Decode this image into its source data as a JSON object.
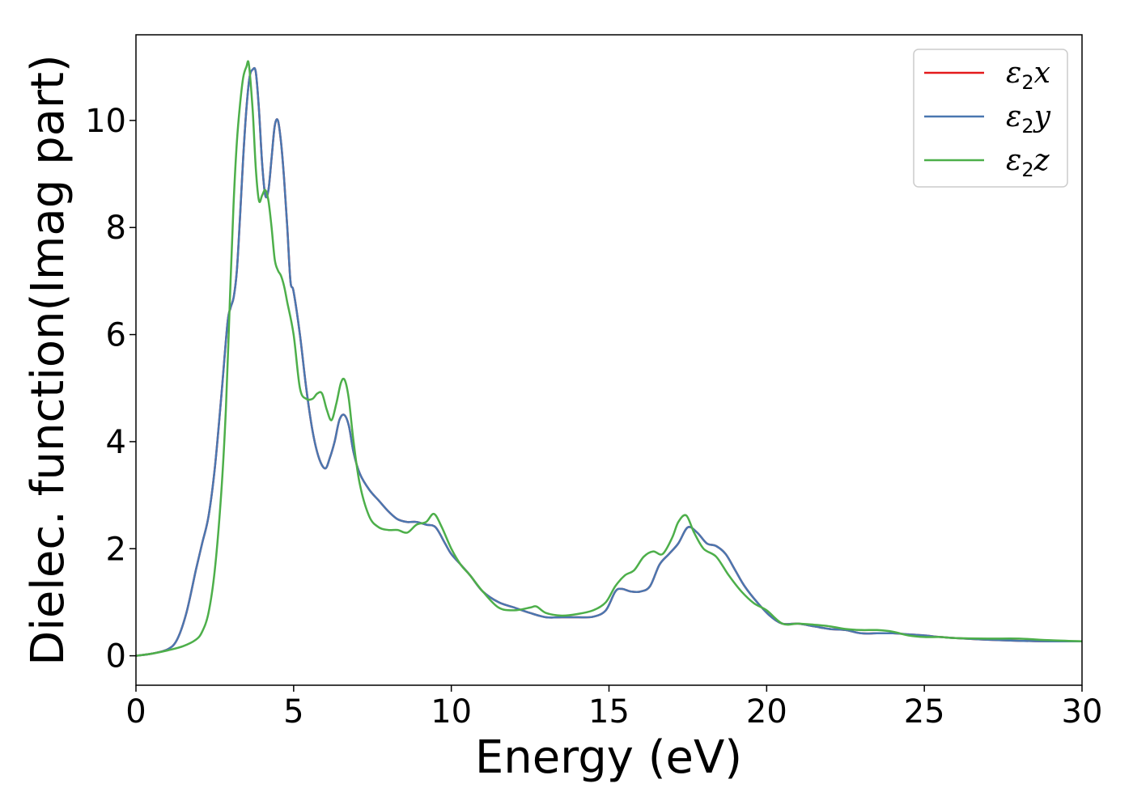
{
  "chart_data": {
    "type": "line",
    "title": "",
    "xlabel": "Energy (eV)",
    "ylabel": "Dielec. function(Imag part)",
    "xlim": [
      0,
      30
    ],
    "ylim": [
      -0.55,
      11.6
    ],
    "xticks": [
      0,
      5,
      10,
      15,
      20,
      25,
      30
    ],
    "xtick_labels": [
      "0",
      "5",
      "10",
      "15",
      "20",
      "25",
      "30"
    ],
    "yticks": [
      0,
      2,
      4,
      6,
      8,
      10
    ],
    "ytick_labels": [
      "0",
      "2",
      "4",
      "6",
      "8",
      "10"
    ],
    "grid": false,
    "legend_position": "top-right",
    "series": [
      {
        "name": "ε2x",
        "legend_base": "ε",
        "legend_sub": "2",
        "legend_var": "x",
        "color": "#e41a1c",
        "x": [
          0,
          0.5,
          1.0,
          1.3,
          1.6,
          1.9,
          2.1,
          2.3,
          2.5,
          2.7,
          2.9,
          3.0,
          3.1,
          3.2,
          3.3,
          3.4,
          3.5,
          3.6,
          3.7,
          3.8,
          3.9,
          4.0,
          4.1,
          4.2,
          4.3,
          4.4,
          4.5,
          4.6,
          4.7,
          4.8,
          4.9,
          5.0,
          5.2,
          5.4,
          5.6,
          5.8,
          6.0,
          6.15,
          6.3,
          6.45,
          6.6,
          6.75,
          6.9,
          7.1,
          7.4,
          7.7,
          8.0,
          8.3,
          8.6,
          8.9,
          9.2,
          9.5,
          9.8,
          10.0,
          10.3,
          10.6,
          11.0,
          11.5,
          12.0,
          12.5,
          13.0,
          13.5,
          14.0,
          14.5,
          14.9,
          15.2,
          15.4,
          15.7,
          16.0,
          16.3,
          16.6,
          16.9,
          17.2,
          17.5,
          17.8,
          18.1,
          18.4,
          18.7,
          19.0,
          19.3,
          19.7,
          20.1,
          20.5,
          21.0,
          21.5,
          22.0,
          22.5,
          23.0,
          23.5,
          24.0,
          24.5,
          25.0,
          25.5,
          26.0,
          27.0,
          28.0,
          29.0,
          30.0
        ],
        "y": [
          0.0,
          0.04,
          0.12,
          0.3,
          0.8,
          1.6,
          2.1,
          2.6,
          3.5,
          4.8,
          6.2,
          6.5,
          6.7,
          7.2,
          8.2,
          9.3,
          10.2,
          10.8,
          10.95,
          10.9,
          10.2,
          9.2,
          8.6,
          8.7,
          9.3,
          9.9,
          10.0,
          9.6,
          8.9,
          8.0,
          7.0,
          6.8,
          6.0,
          5.0,
          4.2,
          3.7,
          3.5,
          3.7,
          4.0,
          4.4,
          4.5,
          4.3,
          3.8,
          3.4,
          3.1,
          2.9,
          2.7,
          2.55,
          2.5,
          2.5,
          2.45,
          2.4,
          2.1,
          1.9,
          1.7,
          1.5,
          1.2,
          1.0,
          0.9,
          0.8,
          0.72,
          0.72,
          0.72,
          0.73,
          0.85,
          1.2,
          1.25,
          1.2,
          1.2,
          1.3,
          1.7,
          1.9,
          2.1,
          2.4,
          2.3,
          2.1,
          2.05,
          1.9,
          1.6,
          1.3,
          1.0,
          0.75,
          0.6,
          0.6,
          0.55,
          0.5,
          0.48,
          0.42,
          0.42,
          0.42,
          0.4,
          0.38,
          0.35,
          0.33,
          0.3,
          0.28,
          0.27,
          0.27
        ]
      },
      {
        "name": "ε2y",
        "legend_base": "ε",
        "legend_sub": "2",
        "legend_var": "y",
        "color": "#4a77b0",
        "x": [
          0,
          0.5,
          1.0,
          1.3,
          1.6,
          1.9,
          2.1,
          2.3,
          2.5,
          2.7,
          2.9,
          3.0,
          3.1,
          3.2,
          3.3,
          3.4,
          3.5,
          3.6,
          3.7,
          3.8,
          3.9,
          4.0,
          4.1,
          4.2,
          4.3,
          4.4,
          4.5,
          4.6,
          4.7,
          4.8,
          4.9,
          5.0,
          5.2,
          5.4,
          5.6,
          5.8,
          6.0,
          6.15,
          6.3,
          6.45,
          6.6,
          6.75,
          6.9,
          7.1,
          7.4,
          7.7,
          8.0,
          8.3,
          8.6,
          8.9,
          9.2,
          9.5,
          9.8,
          10.0,
          10.3,
          10.6,
          11.0,
          11.5,
          12.0,
          12.5,
          13.0,
          13.5,
          14.0,
          14.5,
          14.9,
          15.2,
          15.4,
          15.7,
          16.0,
          16.3,
          16.6,
          16.9,
          17.2,
          17.5,
          17.8,
          18.1,
          18.4,
          18.7,
          19.0,
          19.3,
          19.7,
          20.1,
          20.5,
          21.0,
          21.5,
          22.0,
          22.5,
          23.0,
          23.5,
          24.0,
          24.5,
          25.0,
          25.5,
          26.0,
          27.0,
          28.0,
          29.0,
          30.0
        ],
        "y": [
          0.0,
          0.04,
          0.12,
          0.3,
          0.8,
          1.6,
          2.1,
          2.6,
          3.5,
          4.8,
          6.2,
          6.5,
          6.7,
          7.2,
          8.2,
          9.3,
          10.2,
          10.8,
          10.95,
          10.9,
          10.2,
          9.2,
          8.6,
          8.7,
          9.3,
          9.9,
          10.0,
          9.6,
          8.9,
          8.0,
          7.0,
          6.8,
          6.0,
          5.0,
          4.2,
          3.7,
          3.5,
          3.7,
          4.0,
          4.4,
          4.5,
          4.3,
          3.8,
          3.4,
          3.1,
          2.9,
          2.7,
          2.55,
          2.5,
          2.5,
          2.45,
          2.4,
          2.1,
          1.9,
          1.7,
          1.5,
          1.2,
          1.0,
          0.9,
          0.8,
          0.72,
          0.72,
          0.72,
          0.73,
          0.85,
          1.2,
          1.25,
          1.2,
          1.2,
          1.3,
          1.7,
          1.9,
          2.1,
          2.4,
          2.3,
          2.1,
          2.05,
          1.9,
          1.6,
          1.3,
          1.0,
          0.75,
          0.6,
          0.6,
          0.55,
          0.5,
          0.48,
          0.42,
          0.42,
          0.42,
          0.4,
          0.38,
          0.35,
          0.33,
          0.3,
          0.28,
          0.27,
          0.27
        ]
      },
      {
        "name": "ε2z",
        "legend_base": "ε",
        "legend_sub": "2",
        "legend_var": "z",
        "color": "#4daf4a",
        "x": [
          0,
          0.5,
          1.0,
          1.5,
          1.9,
          2.1,
          2.3,
          2.5,
          2.7,
          2.85,
          3.0,
          3.1,
          3.2,
          3.3,
          3.4,
          3.5,
          3.58,
          3.7,
          3.8,
          3.9,
          4.0,
          4.1,
          4.2,
          4.3,
          4.4,
          4.5,
          4.6,
          4.7,
          4.8,
          5.0,
          5.2,
          5.4,
          5.6,
          5.75,
          5.9,
          6.05,
          6.2,
          6.35,
          6.5,
          6.62,
          6.75,
          6.9,
          7.1,
          7.4,
          7.7,
          8.0,
          8.3,
          8.6,
          8.9,
          9.2,
          9.45,
          9.7,
          10.0,
          10.3,
          10.6,
          11.0,
          11.5,
          12.0,
          12.5,
          12.7,
          13.0,
          13.5,
          14.0,
          14.5,
          14.9,
          15.2,
          15.5,
          15.8,
          16.1,
          16.4,
          16.7,
          17.0,
          17.2,
          17.45,
          17.7,
          18.0,
          18.4,
          18.8,
          19.2,
          19.6,
          20.0,
          20.5,
          21.0,
          21.5,
          22.0,
          22.5,
          23.0,
          23.5,
          24.0,
          24.5,
          25.0,
          25.5,
          26.0,
          27.0,
          28.0,
          29.0,
          30.0
        ],
        "y": [
          0.0,
          0.04,
          0.1,
          0.18,
          0.3,
          0.45,
          0.8,
          1.6,
          3.0,
          4.6,
          7.0,
          8.5,
          9.6,
          10.3,
          10.8,
          11.0,
          11.05,
          10.2,
          9.1,
          8.5,
          8.6,
          8.7,
          8.5,
          8.0,
          7.4,
          7.2,
          7.1,
          6.9,
          6.6,
          6.0,
          5.0,
          4.8,
          4.8,
          4.9,
          4.9,
          4.6,
          4.4,
          4.7,
          5.1,
          5.15,
          4.8,
          4.0,
          3.2,
          2.6,
          2.4,
          2.35,
          2.35,
          2.3,
          2.45,
          2.5,
          2.65,
          2.4,
          2.0,
          1.7,
          1.5,
          1.2,
          0.9,
          0.85,
          0.9,
          0.92,
          0.8,
          0.75,
          0.78,
          0.85,
          1.0,
          1.3,
          1.5,
          1.6,
          1.85,
          1.95,
          1.9,
          2.2,
          2.5,
          2.62,
          2.3,
          2.0,
          1.85,
          1.5,
          1.2,
          0.98,
          0.85,
          0.6,
          0.6,
          0.58,
          0.55,
          0.5,
          0.48,
          0.48,
          0.45,
          0.38,
          0.35,
          0.35,
          0.33,
          0.32,
          0.32,
          0.29,
          0.27
        ]
      }
    ]
  }
}
